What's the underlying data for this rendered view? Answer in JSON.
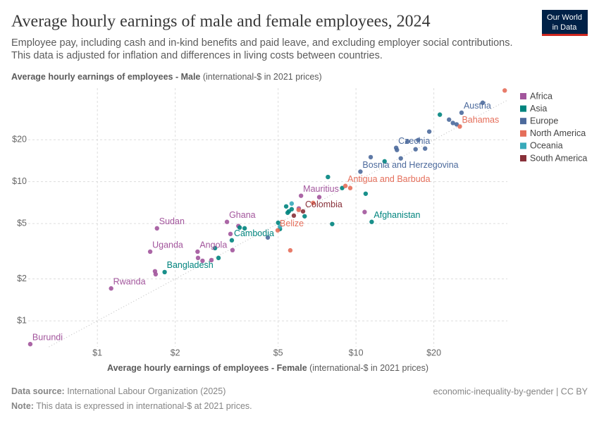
{
  "title": "Average hourly earnings of male and female employees, 2024",
  "subtitle": [
    "Employee pay, including cash and in-kind benefits and paid leave, and excluding employer social contributions.",
    "This data is adjusted for inflation and differences in living costs between countries."
  ],
  "logo": [
    "Our World",
    "in Data"
  ],
  "footer": {
    "source_label": "Data source:",
    "source": "International Labour Organization (2025)",
    "note_label": "Note:",
    "note": "This data is expressed in international-$ at 2021 prices.",
    "link": "economic-inequality-by-gender | CC BY"
  },
  "chart_data": {
    "type": "scatter",
    "log_x": true,
    "log_y": true,
    "grid": true,
    "y_label": "Average hourly earnings of employees - Male",
    "y_label_unit": "(international-$ in 2021 prices)",
    "x_label": "Average hourly earnings of employees - Female",
    "x_label_unit": "(international-$ in 2021 prices)",
    "xlim": [
      0.54,
      38.5
    ],
    "ylim": [
      0.65,
      47
    ],
    "xticks": [
      {
        "value": 1,
        "label": "$1"
      },
      {
        "value": 2,
        "label": "$2"
      },
      {
        "value": 5,
        "label": "$5"
      },
      {
        "value": 10,
        "label": "$10"
      },
      {
        "value": 20,
        "label": "$20"
      }
    ],
    "yticks": [
      {
        "value": 1,
        "label": "$1"
      },
      {
        "value": 2,
        "label": "$2"
      },
      {
        "value": 5,
        "label": "$5"
      },
      {
        "value": 10,
        "label": "$10"
      },
      {
        "value": 20,
        "label": "$20"
      }
    ],
    "series": [
      {
        "name": "Africa",
        "color": "#a2559c",
        "points": [
          {
            "x": 0.55,
            "y": 0.68,
            "label": "Burundi"
          },
          {
            "x": 1.13,
            "y": 1.71,
            "label": "Rwanda"
          },
          {
            "x": 1.67,
            "y": 2.27
          },
          {
            "x": 1.68,
            "y": 2.16
          },
          {
            "x": 1.6,
            "y": 3.14,
            "label": "Uganda"
          },
          {
            "x": 1.7,
            "y": 4.62,
            "label": "Sudan"
          },
          {
            "x": 2.44,
            "y": 3.14,
            "label": "Angola"
          },
          {
            "x": 2.45,
            "y": 2.83
          },
          {
            "x": 2.55,
            "y": 2.7
          },
          {
            "x": 2.76,
            "y": 2.73
          },
          {
            "x": 3.33,
            "y": 3.22
          },
          {
            "x": 3.17,
            "y": 5.14,
            "label": "Ghana"
          },
          {
            "x": 3.51,
            "y": 4.8
          },
          {
            "x": 3.27,
            "y": 4.21
          },
          {
            "x": 6.13,
            "y": 7.92,
            "label": "Mauritius"
          },
          {
            "x": 7.21,
            "y": 7.74
          },
          {
            "x": 6.01,
            "y": 6.42
          },
          {
            "x": 10.8,
            "y": 6.05
          }
        ]
      },
      {
        "name": "Asia",
        "color": "#00847e",
        "points": [
          {
            "x": 1.82,
            "y": 2.24,
            "label": "Bangladesh"
          },
          {
            "x": 2.85,
            "y": 3.33
          },
          {
            "x": 2.94,
            "y": 2.83
          },
          {
            "x": 3.31,
            "y": 3.79,
            "label": "Cambodia"
          },
          {
            "x": 3.55,
            "y": 4.68
          },
          {
            "x": 3.71,
            "y": 4.62
          },
          {
            "x": 5.37,
            "y": 6.64
          },
          {
            "x": 5.5,
            "y": 6.12
          },
          {
            "x": 5.44,
            "y": 5.98
          },
          {
            "x": 5.64,
            "y": 6.34
          },
          {
            "x": 6.33,
            "y": 5.64
          },
          {
            "x": 5.0,
            "y": 5.07
          },
          {
            "x": 5.08,
            "y": 4.57
          },
          {
            "x": 8.09,
            "y": 4.96
          },
          {
            "x": 11.5,
            "y": 5.14,
            "label": "Afghanistan"
          },
          {
            "x": 7.79,
            "y": 10.8
          },
          {
            "x": 8.84,
            "y": 9.0
          },
          {
            "x": 10.9,
            "y": 8.19
          },
          {
            "x": 12.9,
            "y": 14.0
          },
          {
            "x": 21.1,
            "y": 30.3
          }
        ]
      },
      {
        "name": "Europe",
        "color": "#4c6a9c",
        "points": [
          {
            "x": 4.56,
            "y": 3.97
          },
          {
            "x": 10.4,
            "y": 11.8,
            "label": "Bosnia and Herzegovina"
          },
          {
            "x": 11.4,
            "y": 15.0
          },
          {
            "x": 14.3,
            "y": 17.5,
            "label": "Czechia"
          },
          {
            "x": 14.4,
            "y": 16.9
          },
          {
            "x": 14.9,
            "y": 14.7
          },
          {
            "x": 15.8,
            "y": 19.4
          },
          {
            "x": 17.0,
            "y": 17.1
          },
          {
            "x": 17.4,
            "y": 19.9
          },
          {
            "x": 18.5,
            "y": 17.3
          },
          {
            "x": 19.2,
            "y": 22.9
          },
          {
            "x": 22.9,
            "y": 27.9
          },
          {
            "x": 23.7,
            "y": 26.4
          },
          {
            "x": 24.5,
            "y": 25.8
          },
          {
            "x": 25.6,
            "y": 31.3,
            "label": "Austria"
          },
          {
            "x": 30.9,
            "y": 36.9
          }
        ]
      },
      {
        "name": "North America",
        "color": "#e56e5a",
        "points": [
          {
            "x": 4.98,
            "y": 4.47,
            "label": "Belize"
          },
          {
            "x": 5.57,
            "y": 3.21
          },
          {
            "x": 6.0,
            "y": 6.27
          },
          {
            "x": 6.83,
            "y": 7.03
          },
          {
            "x": 9.1,
            "y": 9.32,
            "label": "Antigua and Barbuda"
          },
          {
            "x": 9.5,
            "y": 9.0
          },
          {
            "x": 25.2,
            "y": 24.9,
            "label": "Bahamas"
          },
          {
            "x": 37.6,
            "y": 45.2
          }
        ]
      },
      {
        "name": "Oceania",
        "color": "#38aaba",
        "points": [
          {
            "x": 5.64,
            "y": 6.96
          },
          {
            "x": 5.08,
            "y": 4.75
          }
        ]
      },
      {
        "name": "South America",
        "color": "#883039",
        "points": [
          {
            "x": 6.24,
            "y": 6.12,
            "label": "Colombia"
          },
          {
            "x": 5.75,
            "y": 5.7
          }
        ]
      }
    ]
  }
}
